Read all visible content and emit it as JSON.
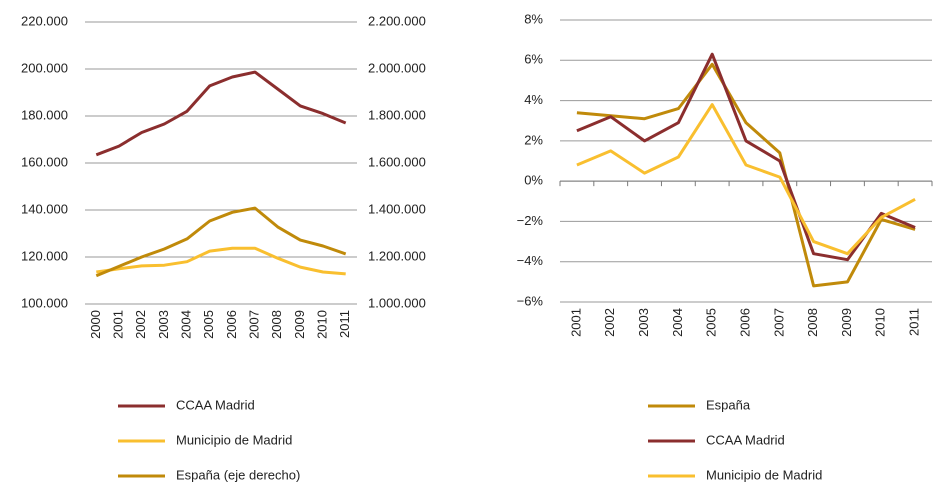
{
  "chart_data": [
    {
      "type": "line",
      "categories": [
        "2000",
        "2001",
        "2002",
        "2003",
        "2004",
        "2005",
        "2006",
        "2007",
        "2008",
        "2009",
        "2010",
        "2011"
      ],
      "ylim": [
        100000,
        220000
      ],
      "yticks": [
        {
          "value": 100000,
          "label": "100.000"
        },
        {
          "value": 120000,
          "label": "120.000"
        },
        {
          "value": 140000,
          "label": "140.000"
        },
        {
          "value": 160000,
          "label": "160.000"
        },
        {
          "value": 180000,
          "label": "180.000"
        },
        {
          "value": 200000,
          "label": "200.000"
        },
        {
          "value": 220000,
          "label": "220.000"
        }
      ],
      "y2lim": [
        1000000,
        2200000
      ],
      "y2ticks": [
        {
          "value": 1000000,
          "label": "1.000.000"
        },
        {
          "value": 1200000,
          "label": "1.200.000"
        },
        {
          "value": 1400000,
          "label": "1.400.000"
        },
        {
          "value": 1600000,
          "label": "1.600.000"
        },
        {
          "value": 1800000,
          "label": "1.800.000"
        },
        {
          "value": 2000000,
          "label": "2.000.000"
        },
        {
          "value": 2200000,
          "label": "2.200.000"
        }
      ],
      "grid": true,
      "series": [
        {
          "name": "CCAA Madrid",
          "color": "#8b2e2e",
          "values": [
            163500,
            167200,
            173000,
            176600,
            182000,
            192800,
            196600,
            198700,
            191500,
            184300,
            181000,
            177000
          ]
        },
        {
          "name": "Municipio de Madrid",
          "color": "#f9bf2f",
          "values": [
            113600,
            115000,
            116200,
            116500,
            118000,
            122500,
            123700,
            123700,
            119500,
            115700,
            113600,
            112800
          ]
        },
        {
          "name": "España (eje derecho)",
          "color": "#c08a0a",
          "axis": "y2",
          "values": [
            1120000,
            1160000,
            1200000,
            1234000,
            1277000,
            1353000,
            1390000,
            1408000,
            1328000,
            1272000,
            1247000,
            1213000
          ]
        }
      ]
    },
    {
      "type": "line",
      "categories": [
        "2001",
        "2002",
        "2003",
        "2004",
        "2005",
        "2006",
        "2007",
        "2008",
        "2009",
        "2010",
        "2011"
      ],
      "ylim": [
        -6,
        8
      ],
      "yticks": [
        {
          "value": -6,
          "label": "−6%"
        },
        {
          "value": -4,
          "label": "−4%"
        },
        {
          "value": -2,
          "label": "−2%"
        },
        {
          "value": 0,
          "label": "0%"
        },
        {
          "value": 2,
          "label": "2%"
        },
        {
          "value": 4,
          "label": "4%"
        },
        {
          "value": 6,
          "label": "6%"
        },
        {
          "value": 8,
          "label": "8%"
        }
      ],
      "grid": true,
      "series": [
        {
          "name": "España",
          "color": "#c08a0a",
          "values": [
            3.4,
            3.25,
            3.1,
            3.6,
            5.8,
            2.9,
            1.4,
            -5.2,
            -5.0,
            -1.9,
            -2.4
          ]
        },
        {
          "name": "CCAA Madrid",
          "color": "#8b2e2e",
          "values": [
            2.5,
            3.2,
            2.0,
            2.9,
            6.3,
            2.0,
            1.0,
            -3.6,
            -3.9,
            -1.6,
            -2.3
          ]
        },
        {
          "name": "Municipio de Madrid",
          "color": "#f9bf2f",
          "values": [
            0.8,
            1.5,
            0.4,
            1.2,
            3.8,
            0.8,
            0.2,
            -3.0,
            -3.6,
            -1.8,
            -0.9
          ]
        }
      ]
    }
  ]
}
